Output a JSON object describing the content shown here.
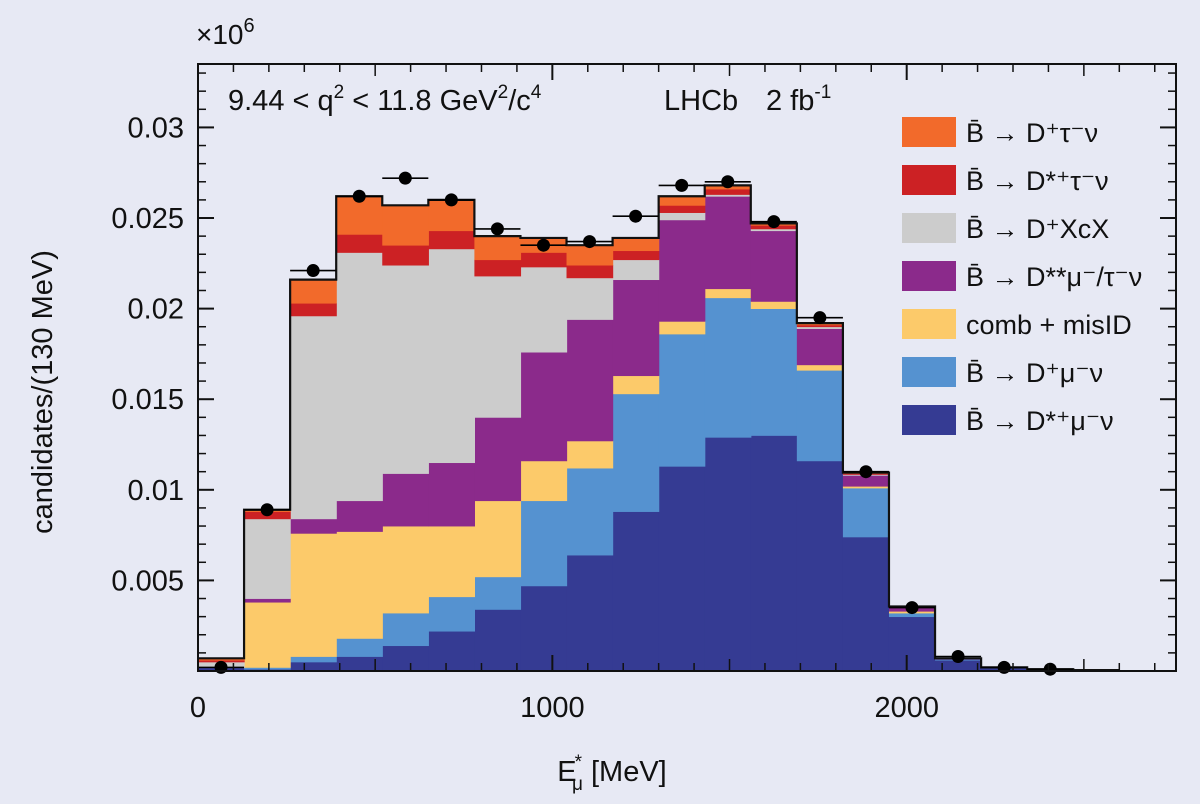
{
  "chart_data": {
    "type": "bar",
    "stacked": true,
    "x_unit_label": "E",
    "x_unit_sub": "μ",
    "x_unit_sup": "*",
    "xlabel_suffix": " [MeV]",
    "ylabel": "candidates/(130 MeV)",
    "y_multiplier": "×10",
    "y_multiplier_exp": "6",
    "xlim": [
      0,
      2760
    ],
    "ylim": [
      0,
      0.0335
    ],
    "x_ticks": [
      0,
      1000,
      2000
    ],
    "x_tick_labels": [
      "0",
      "1000",
      "2000"
    ],
    "y_ticks": [
      0.005,
      0.01,
      0.015,
      0.02,
      0.025,
      0.03
    ],
    "y_tick_labels": [
      "0.005",
      "0.01",
      "0.015",
      "0.02",
      "0.025",
      "0.03"
    ],
    "grid": false,
    "legend_position": "right",
    "annotation": {
      "cut_left": "9.44 < q",
      "cut_sup1": "2",
      "cut_mid": " < 11.8 GeV",
      "cut_sup2": "2",
      "cut_slash": "/c",
      "cut_sup3": "4",
      "experiment": "LHCb",
      "lumi": "2 fb",
      "lumi_sup": "-1"
    },
    "bin_edges": [
      0,
      130,
      260,
      390,
      520,
      650,
      780,
      910,
      1040,
      1170,
      1300,
      1430,
      1560,
      1690,
      1820,
      1950,
      2080,
      2210,
      2340,
      2470,
      2600
    ],
    "series": [
      {
        "key": "dstmunu",
        "name": "B̄ → D*⁺μ⁻ν",
        "color": "#353b93",
        "values": [
          0.0002,
          0.0001,
          0.0005,
          0.0008,
          0.0014,
          0.0022,
          0.0034,
          0.0047,
          0.0064,
          0.0088,
          0.0113,
          0.0129,
          0.013,
          0.0116,
          0.0074,
          0.003,
          0.0006,
          0.0002,
          0.0001,
          5e-05
        ]
      },
      {
        "key": "dmunu",
        "name": "B̄ → D⁺μ⁻ν",
        "color": "#5592d0",
        "values": [
          0,
          0.0001,
          0.0003,
          0.001,
          0.0018,
          0.0019,
          0.0018,
          0.0047,
          0.0048,
          0.0065,
          0.0073,
          0.0077,
          0.007,
          0.005,
          0.0027,
          0.0002,
          5e-05,
          0,
          0,
          0
        ]
      },
      {
        "key": "comb",
        "name": "comb + misID",
        "color": "#fcca6a",
        "values": [
          0,
          0.0036,
          0.0068,
          0.0059,
          0.0048,
          0.0039,
          0.0042,
          0.0022,
          0.0015,
          0.001,
          0.0007,
          0.0005,
          0.0004,
          0.0003,
          0.0001,
          0.0001,
          0,
          0,
          0,
          0
        ]
      },
      {
        "key": "dststmunu",
        "name": "B̄ → D**μ⁻/τ⁻ν",
        "color": "#8b2a8b",
        "values": [
          0,
          0.0002,
          0.0008,
          0.0017,
          0.0029,
          0.0035,
          0.0046,
          0.006,
          0.0067,
          0.0053,
          0.0056,
          0.0051,
          0.0039,
          0.002,
          0.0006,
          0.0002,
          5e-05,
          0,
          0,
          0
        ]
      },
      {
        "key": "dxcx",
        "name": "B̄ → D⁺XcX",
        "color": "#cccccc",
        "values": [
          0.0003,
          0.0044,
          0.0112,
          0.0137,
          0.0115,
          0.0118,
          0.0078,
          0.0047,
          0.0023,
          0.0011,
          0.0004,
          0.0001,
          0.0001,
          0.0001,
          5e-05,
          0,
          0,
          0,
          0,
          0
        ]
      },
      {
        "key": "dsttaunu",
        "name": "B̄ → D*⁺τ⁻ν",
        "color": "#cc2124",
        "values": [
          0.0001,
          0.0004,
          0.0007,
          0.001,
          0.0011,
          0.001,
          0.0009,
          0.0008,
          0.0007,
          0.0005,
          0.0004,
          0.0003,
          0.0002,
          0.0001,
          5e-05,
          3e-05,
          0,
          0,
          0,
          0
        ]
      },
      {
        "key": "dtaunu",
        "name": "B̄ → D⁺τ⁻ν",
        "color": "#f26a2b",
        "values": [
          0.0001,
          0.0001,
          0.0013,
          0.0021,
          0.0022,
          0.0017,
          0.0013,
          0.0008,
          0.0011,
          0.0007,
          0.0005,
          0.0002,
          0.0001,
          0.0001,
          5e-05,
          3e-05,
          0,
          0,
          0,
          0
        ]
      }
    ],
    "data_points": {
      "x": [
        65,
        195,
        325,
        455,
        585,
        715,
        845,
        975,
        1105,
        1235,
        1365,
        1495,
        1625,
        1755,
        1885,
        2015,
        2145,
        2275,
        2405
      ],
      "y": [
        0.0002,
        0.0089,
        0.0221,
        0.0262,
        0.0272,
        0.026,
        0.0244,
        0.0235,
        0.0237,
        0.0251,
        0.0268,
        0.027,
        0.0248,
        0.0195,
        0.011,
        0.0035,
        0.0008,
        0.0002,
        0.0001
      ]
    },
    "legend": [
      {
        "key": "dtaunu",
        "label": "B̄ → D⁺τ⁻ν",
        "color": "#f26a2b"
      },
      {
        "key": "dsttaunu",
        "label": "B̄ → D*⁺τ⁻ν",
        "color": "#cc2124"
      },
      {
        "key": "dxcx",
        "label": "B̄ → D⁺XcX",
        "color": "#cccccc"
      },
      {
        "key": "dststmunu",
        "label": "B̄ → D**μ⁻/τ⁻ν",
        "color": "#8b2a8b"
      },
      {
        "key": "comb",
        "label": "comb + misID",
        "color": "#fcca6a"
      },
      {
        "key": "dmunu",
        "label": "B̄ → D⁺μ⁻ν",
        "color": "#5592d0"
      },
      {
        "key": "dstmunu",
        "label": "B̄ → D*⁺μ⁻ν",
        "color": "#353b93"
      }
    ]
  }
}
